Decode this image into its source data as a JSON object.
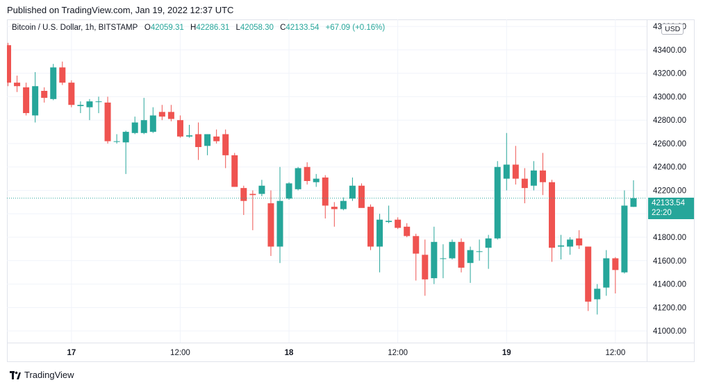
{
  "header": {
    "published": "Published on TradingView.com, Jan 19, 2022 12:37 UTC"
  },
  "legend": {
    "symbol": "Bitcoin / U.S. Dollar, 1h, BITSTAMP",
    "o_label": "O",
    "o_value": "42059.31",
    "h_label": "H",
    "h_value": "42286.31",
    "l_label": "L",
    "l_value": "42058.30",
    "c_label": "C",
    "c_value": "42133.54",
    "change": "+67.09 (+0.16%)"
  },
  "currency": "USD",
  "last_price": {
    "price": "42133.54",
    "countdown": "22:20"
  },
  "footer": {
    "brand": "TradingView"
  },
  "colors": {
    "up": "#26a69a",
    "down": "#ef5350",
    "grid": "#f0f3fa",
    "axis_text": "#131722"
  },
  "chart_data": {
    "type": "candlestick",
    "title": "Bitcoin / U.S. Dollar, 1h, BITSTAMP",
    "ylim": [
      40900,
      43660
    ],
    "y_ticks": [
      "41000.00",
      "41200.00",
      "41400.00",
      "41600.00",
      "41800.00",
      "42000.00",
      "42200.00",
      "42400.00",
      "42600.00",
      "42800.00",
      "43000.00",
      "43200.00",
      "43400.00",
      "43600.00"
    ],
    "x_ticks": [
      {
        "label": "17",
        "index": 7
      },
      {
        "label": "12:00",
        "index": 19
      },
      {
        "label": "18",
        "index": 31
      },
      {
        "label": "12:00",
        "index": 43
      },
      {
        "label": "19",
        "index": 55
      },
      {
        "label": "12:00",
        "index": 67
      }
    ],
    "last_price": 42133.54,
    "candles": [
      {
        "o": 43440,
        "h": 43460,
        "l": 43090,
        "c": 43120
      },
      {
        "o": 43120,
        "h": 43180,
        "l": 43040,
        "c": 43090
      },
      {
        "o": 43080,
        "h": 43120,
        "l": 42840,
        "c": 42860
      },
      {
        "o": 42840,
        "h": 43210,
        "l": 42780,
        "c": 43090
      },
      {
        "o": 43050,
        "h": 43080,
        "l": 42950,
        "c": 42990
      },
      {
        "o": 42980,
        "h": 43280,
        "l": 42970,
        "c": 43250
      },
      {
        "o": 43250,
        "h": 43300,
        "l": 43100,
        "c": 43120
      },
      {
        "o": 43120,
        "h": 43140,
        "l": 42910,
        "c": 42930
      },
      {
        "o": 42920,
        "h": 42960,
        "l": 42860,
        "c": 42930
      },
      {
        "o": 42910,
        "h": 42980,
        "l": 42800,
        "c": 42960
      },
      {
        "o": 42960,
        "h": 43000,
        "l": 42860,
        "c": 42960
      },
      {
        "o": 42950,
        "h": 43000,
        "l": 42600,
        "c": 42620
      },
      {
        "o": 42620,
        "h": 42680,
        "l": 42600,
        "c": 42620
      },
      {
        "o": 42610,
        "h": 42710,
        "l": 42340,
        "c": 42700
      },
      {
        "o": 42690,
        "h": 42830,
        "l": 42680,
        "c": 42780
      },
      {
        "o": 42690,
        "h": 42990,
        "l": 42680,
        "c": 42800
      },
      {
        "o": 42700,
        "h": 42910,
        "l": 42690,
        "c": 42840
      },
      {
        "o": 42870,
        "h": 42930,
        "l": 42800,
        "c": 42830
      },
      {
        "o": 42870,
        "h": 42930,
        "l": 42790,
        "c": 42810
      },
      {
        "o": 42800,
        "h": 42840,
        "l": 42650,
        "c": 42660
      },
      {
        "o": 42660,
        "h": 42760,
        "l": 42650,
        "c": 42670
      },
      {
        "o": 42680,
        "h": 42780,
        "l": 42460,
        "c": 42570
      },
      {
        "o": 42580,
        "h": 42680,
        "l": 42500,
        "c": 42680
      },
      {
        "o": 42660,
        "h": 42720,
        "l": 42600,
        "c": 42620
      },
      {
        "o": 42680,
        "h": 42720,
        "l": 42390,
        "c": 42500
      },
      {
        "o": 42500,
        "h": 42520,
        "l": 42230,
        "c": 42230
      },
      {
        "o": 42220,
        "h": 42240,
        "l": 41990,
        "c": 42110
      },
      {
        "o": 42170,
        "h": 42200,
        "l": 41860,
        "c": 42160
      },
      {
        "o": 42170,
        "h": 42290,
        "l": 42150,
        "c": 42240
      },
      {
        "o": 42090,
        "h": 42200,
        "l": 41640,
        "c": 41720
      },
      {
        "o": 41720,
        "h": 42400,
        "l": 41580,
        "c": 42110
      },
      {
        "o": 42130,
        "h": 42270,
        "l": 42120,
        "c": 42260
      },
      {
        "o": 42210,
        "h": 42400,
        "l": 42200,
        "c": 42390
      },
      {
        "o": 42400,
        "h": 42440,
        "l": 42250,
        "c": 42280
      },
      {
        "o": 42270,
        "h": 42340,
        "l": 42230,
        "c": 42300
      },
      {
        "o": 42310,
        "h": 42330,
        "l": 41960,
        "c": 42070
      },
      {
        "o": 42060,
        "h": 42100,
        "l": 41890,
        "c": 42040
      },
      {
        "o": 42040,
        "h": 42140,
        "l": 42030,
        "c": 42110
      },
      {
        "o": 42130,
        "h": 42310,
        "l": 42110,
        "c": 42240
      },
      {
        "o": 42240,
        "h": 42260,
        "l": 42060,
        "c": 42050
      },
      {
        "o": 42060,
        "h": 42080,
        "l": 41690,
        "c": 41720
      },
      {
        "o": 41720,
        "h": 42000,
        "l": 41500,
        "c": 41950
      },
      {
        "o": 41930,
        "h": 42070,
        "l": 41920,
        "c": 41940
      },
      {
        "o": 41950,
        "h": 41970,
        "l": 41870,
        "c": 41880
      },
      {
        "o": 41890,
        "h": 41920,
        "l": 41800,
        "c": 41810
      },
      {
        "o": 41810,
        "h": 41830,
        "l": 41430,
        "c": 41660
      },
      {
        "o": 41650,
        "h": 41780,
        "l": 41300,
        "c": 41440
      },
      {
        "o": 41450,
        "h": 41890,
        "l": 41400,
        "c": 41760
      },
      {
        "o": 41620,
        "h": 41740,
        "l": 41450,
        "c": 41620
      },
      {
        "o": 41620,
        "h": 41780,
        "l": 41610,
        "c": 41760
      },
      {
        "o": 41760,
        "h": 41790,
        "l": 41500,
        "c": 41540
      },
      {
        "o": 41580,
        "h": 41720,
        "l": 41410,
        "c": 41690
      },
      {
        "o": 41680,
        "h": 41780,
        "l": 41600,
        "c": 41680
      },
      {
        "o": 41710,
        "h": 41820,
        "l": 41530,
        "c": 41790
      },
      {
        "o": 41790,
        "h": 42450,
        "l": 41780,
        "c": 42400
      },
      {
        "o": 42300,
        "h": 42690,
        "l": 42200,
        "c": 42420
      },
      {
        "o": 42420,
        "h": 42580,
        "l": 42250,
        "c": 42300
      },
      {
        "o": 42300,
        "h": 42390,
        "l": 42090,
        "c": 42220
      },
      {
        "o": 42240,
        "h": 42450,
        "l": 42200,
        "c": 42370
      },
      {
        "o": 42370,
        "h": 42520,
        "l": 42160,
        "c": 42270
      },
      {
        "o": 42270,
        "h": 42290,
        "l": 41590,
        "c": 41710
      },
      {
        "o": 41720,
        "h": 41820,
        "l": 41610,
        "c": 41730
      },
      {
        "o": 41720,
        "h": 41800,
        "l": 41650,
        "c": 41780
      },
      {
        "o": 41790,
        "h": 41860,
        "l": 41700,
        "c": 41730
      },
      {
        "o": 41720,
        "h": 41720,
        "l": 41170,
        "c": 41250
      },
      {
        "o": 41270,
        "h": 41400,
        "l": 41140,
        "c": 41360
      },
      {
        "o": 41370,
        "h": 41690,
        "l": 41300,
        "c": 41620
      },
      {
        "o": 41620,
        "h": 41630,
        "l": 41320,
        "c": 41520
      },
      {
        "o": 41500,
        "h": 42200,
        "l": 41490,
        "c": 42070
      },
      {
        "o": 42059.31,
        "h": 42286.31,
        "l": 42058.3,
        "c": 42133.54
      }
    ]
  }
}
